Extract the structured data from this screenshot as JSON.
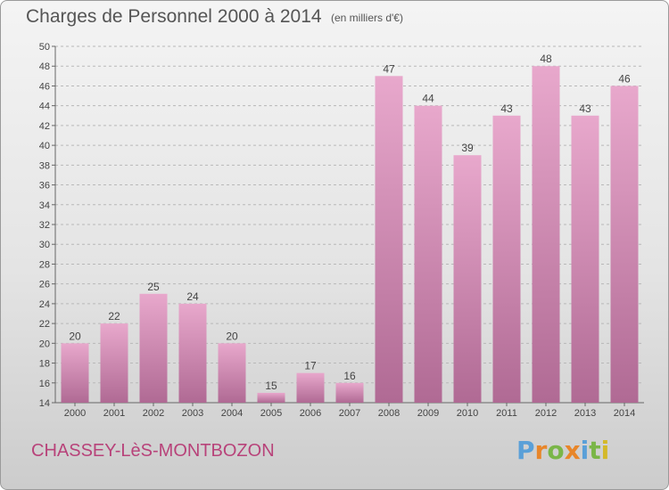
{
  "chart_data": {
    "type": "bar",
    "title": "Charges de Personnel 2000 à 2014",
    "subtitle": "(en milliers d'€)",
    "categories": [
      "2000",
      "2001",
      "2002",
      "2003",
      "2004",
      "2005",
      "2006",
      "2007",
      "2008",
      "2009",
      "2010",
      "2011",
      "2012",
      "2013",
      "2014"
    ],
    "values": [
      20,
      22,
      25,
      24,
      20,
      15,
      17,
      16,
      47,
      44,
      39,
      43,
      48,
      43,
      46
    ],
    "ylim": [
      14,
      50
    ],
    "yticks": [
      14,
      16,
      18,
      20,
      22,
      24,
      26,
      28,
      30,
      32,
      34,
      36,
      38,
      40,
      42,
      44,
      46,
      48,
      50
    ],
    "grid": "horizontal-dashed",
    "bar_color_top": "#e8a8cc",
    "bar_color_bottom": "#b06a94"
  },
  "commune_name": "CHASSEY-LèS-MONTBOZON",
  "logo": {
    "letters": [
      "P",
      "r",
      "o",
      "x",
      "i",
      "t",
      "i"
    ],
    "colors": [
      "#5aa0d8",
      "#e8862a",
      "#7ab648",
      "#e8862a",
      "#5aa0d8",
      "#7ab648",
      "#d4b92a"
    ]
  }
}
